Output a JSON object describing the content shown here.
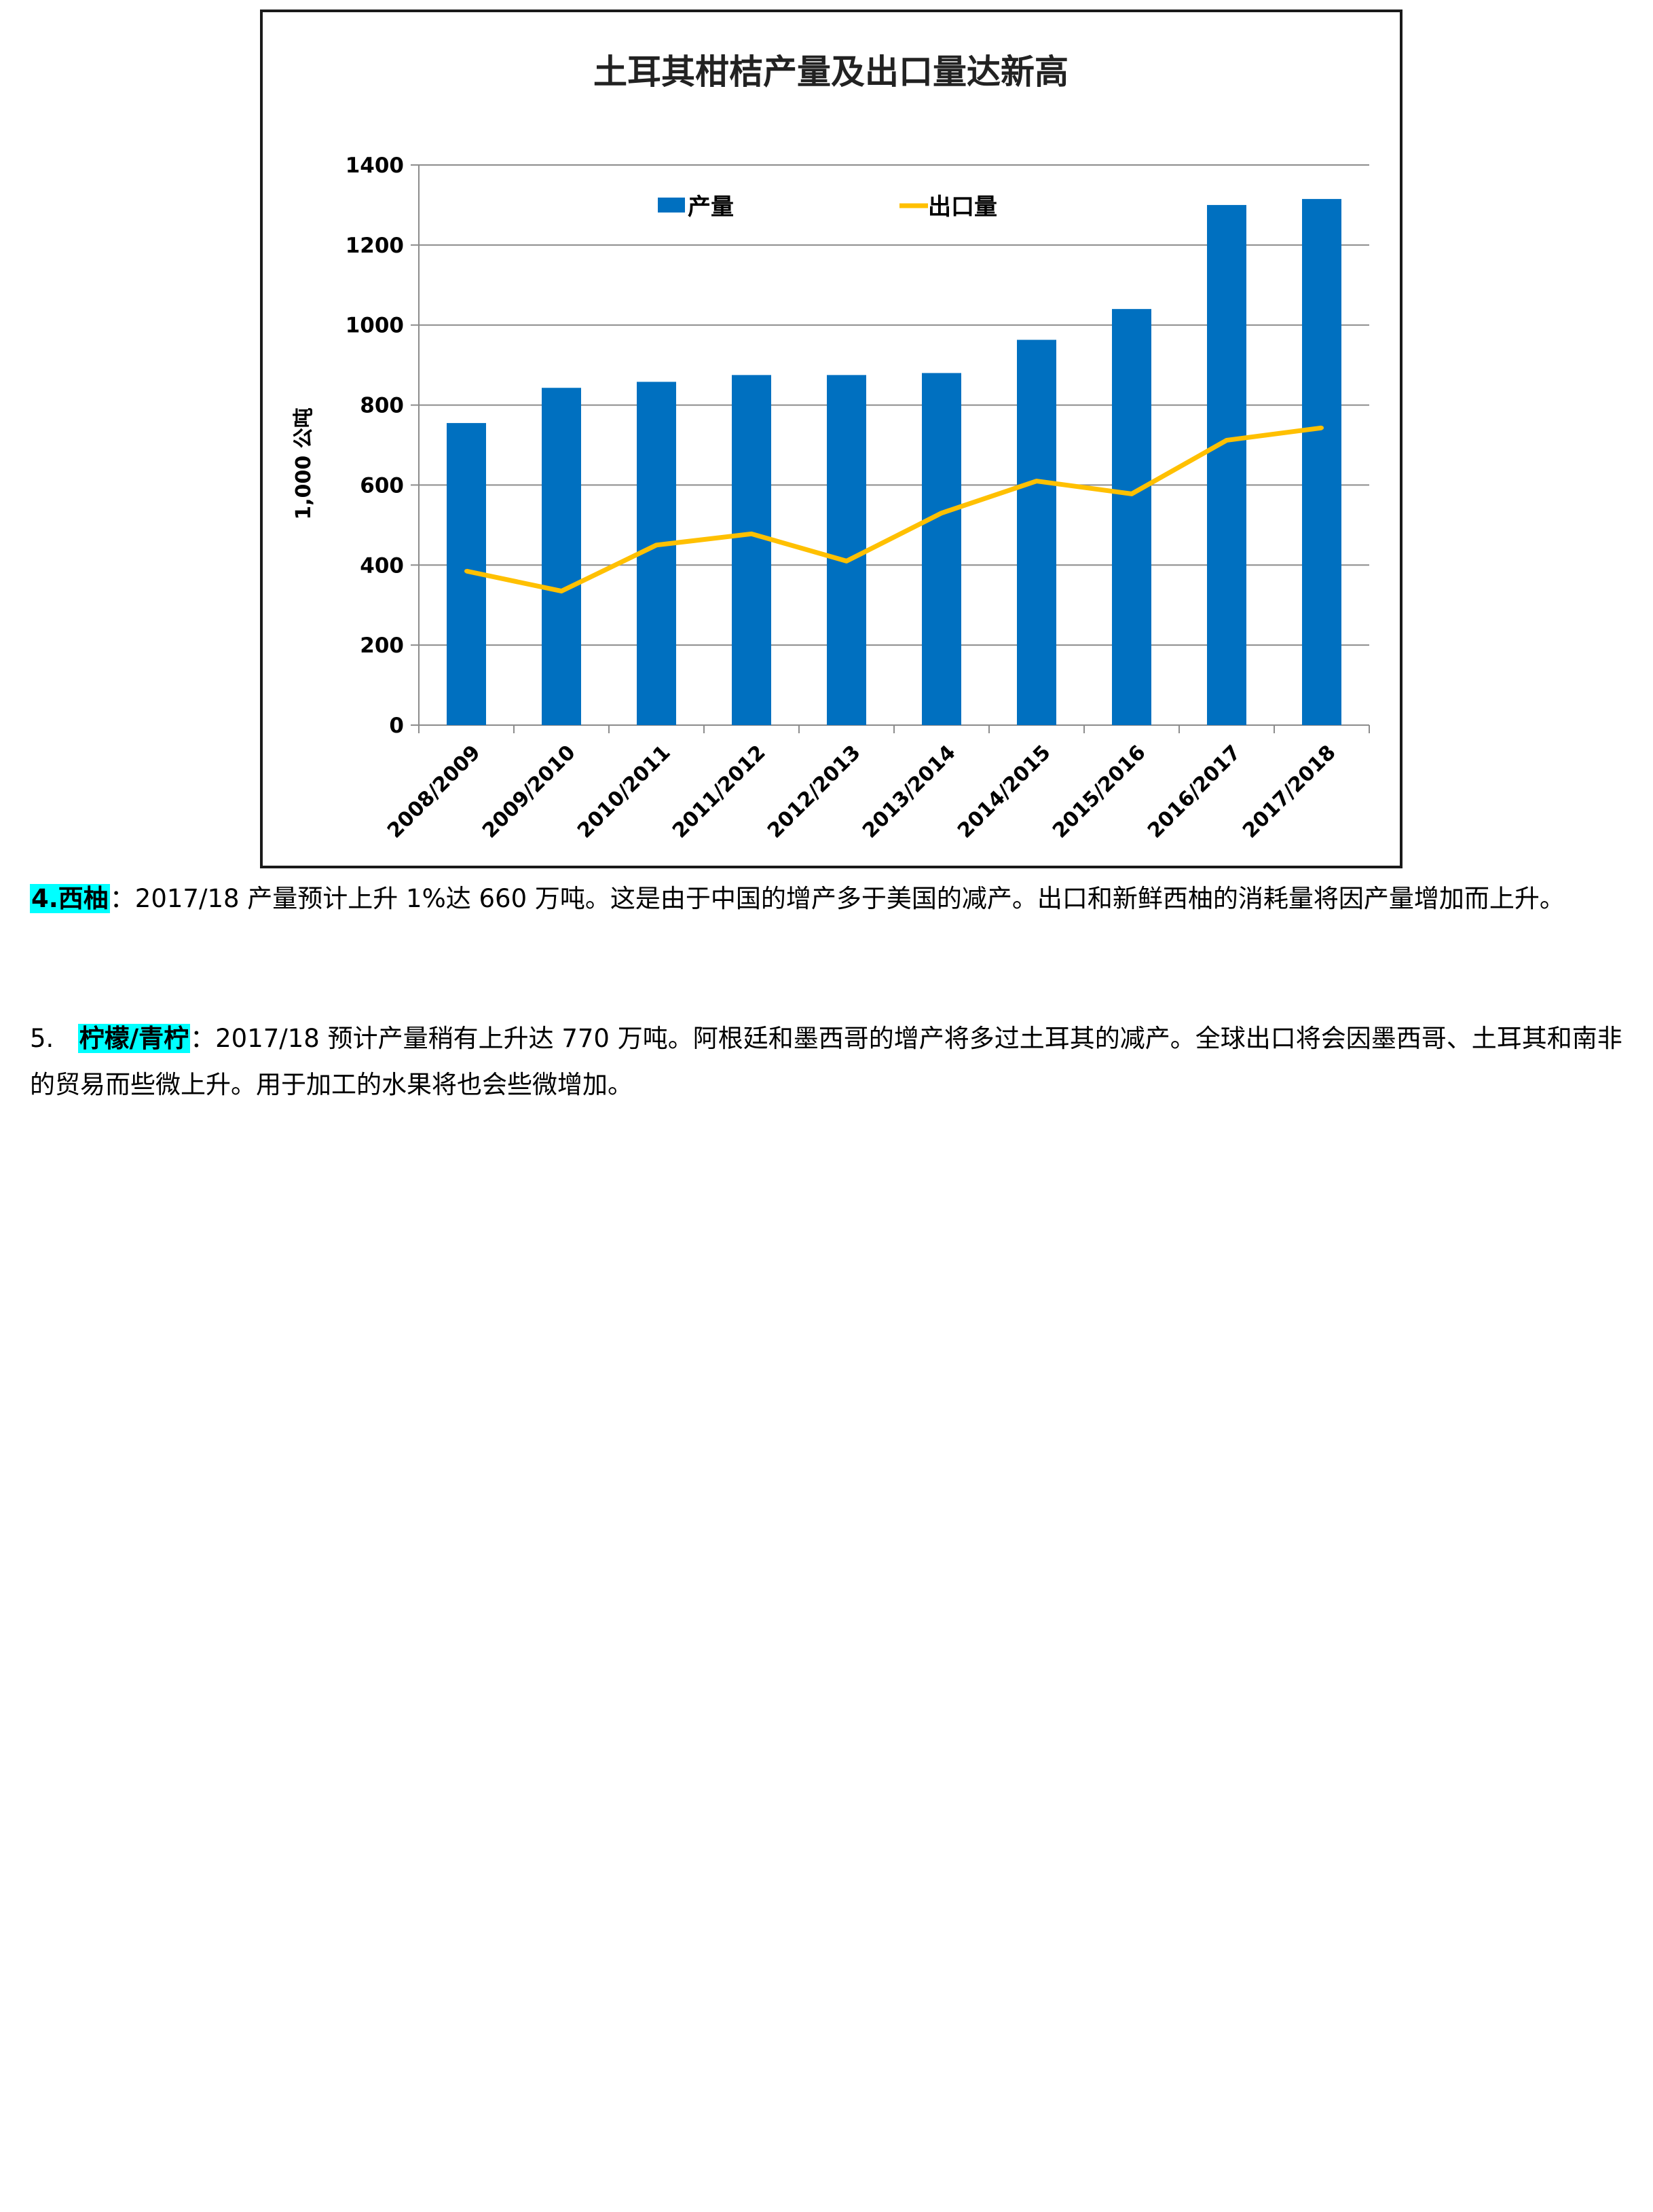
{
  "chart_data": {
    "type": "bar",
    "title": "土耳其柑桔产量及出口量达新高",
    "ylabel": "1,000 公吨",
    "xlabel": "",
    "ylim": [
      0,
      1400
    ],
    "yticks": [
      0,
      200,
      400,
      600,
      800,
      1000,
      1200,
      1400
    ],
    "grid": true,
    "legend_position": "top",
    "categories": [
      "2008/2009",
      "2009/2010",
      "2010/2011",
      "2011/2012",
      "2012/2013",
      "2013/2014",
      "2014/2015",
      "2015/2016",
      "2016/2017",
      "2017/2018"
    ],
    "series": [
      {
        "name": "产量",
        "type": "bar",
        "color": "#0070c0",
        "values": [
          755,
          843,
          858,
          875,
          875,
          880,
          963,
          1040,
          1300,
          1315
        ]
      },
      {
        "name": "出口量",
        "type": "line",
        "color": "#ffc000",
        "values": [
          385,
          335,
          450,
          478,
          410,
          530,
          610,
          578,
          712,
          743
        ]
      }
    ]
  },
  "paragraphs": {
    "p4": {
      "label": "4.西柚",
      "text": "：2017/18 产量预计上升 1%达 660 万吨。这是由于中国的增产多于美国的减产。出口和新鲜西柚的消耗量将因产量增加而上升。"
    },
    "p5": {
      "prefix": "5.   ",
      "label": "柠檬/青柠",
      "text": "：2017/18 预计产量稍有上升达 770 万吨。阿根廷和墨西哥的增产将多过土耳其的减产。全球出口将会因墨西哥、土耳其和南非的贸易而些微上升。用于加工的水果将也会些微增加。"
    }
  }
}
